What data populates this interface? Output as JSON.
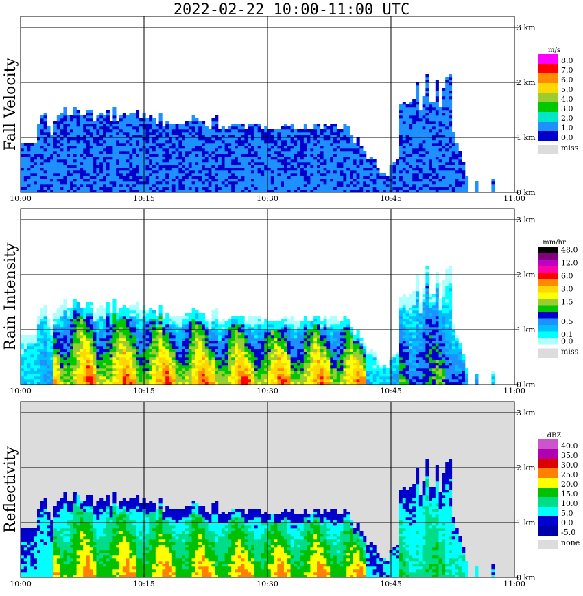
{
  "title": "2022-02-22  10:00-11:00 UTC",
  "x_tick_labels": [
    "10:00",
    "10:15",
    "10:30",
    "10:45",
    "11:00"
  ],
  "y_tick_labels": [
    "0 km",
    "1 km",
    "2 km",
    "3 km"
  ],
  "missing_color": "#dcdcdc",
  "chart_data": [
    {
      "type": "heatmap",
      "title": "Fall Velocity",
      "unit": "m/s",
      "xlim": [
        "10:00",
        "11:00"
      ],
      "ylim_km": [
        0,
        3.2
      ],
      "background": "#ffffff",
      "legend": [
        {
          "label": "8.0",
          "color": "#ff00ff"
        },
        {
          "label": "7.0",
          "color": "#ff0000"
        },
        {
          "label": "6.0",
          "color": "#ff8c00"
        },
        {
          "label": "5.0",
          "color": "#ffd700"
        },
        {
          "label": "4.0",
          "color": "#9acd32"
        },
        {
          "label": "3.0",
          "color": "#00c800"
        },
        {
          "label": "2.0",
          "color": "#00e6c8"
        },
        {
          "label": "1.0",
          "color": "#1e90ff"
        },
        {
          "label": "0.0",
          "color": "#0000cd"
        },
        {
          "label": "miss",
          "color": "#dcdcdc"
        }
      ]
    },
    {
      "type": "heatmap",
      "title": "Rain Intensity",
      "unit": "mm/hr",
      "xlim": [
        "10:00",
        "11:00"
      ],
      "ylim_km": [
        0,
        3.2
      ],
      "background": "#ffffff",
      "legend": [
        {
          "label": "48.0",
          "color": "#000000"
        },
        {
          "label": "",
          "color": "#800080"
        },
        {
          "label": "12.0",
          "color": "#c000c0"
        },
        {
          "label": "",
          "color": "#ff00aa"
        },
        {
          "label": "6.0",
          "color": "#ff0000"
        },
        {
          "label": "",
          "color": "#ff8c00"
        },
        {
          "label": "3.0",
          "color": "#ffd700"
        },
        {
          "label": "",
          "color": "#ffff00"
        },
        {
          "label": "1.5",
          "color": "#9acd32"
        },
        {
          "label": "",
          "color": "#00c800"
        },
        {
          "label": "",
          "color": "#0000cd"
        },
        {
          "label": "0.5",
          "color": "#1e90ff"
        },
        {
          "label": "",
          "color": "#00bfff"
        },
        {
          "label": "0.1",
          "color": "#00ffff"
        },
        {
          "label": "0.0",
          "color": "#b0ffff"
        },
        {
          "label": "miss",
          "color": "#dcdcdc"
        }
      ]
    },
    {
      "type": "heatmap",
      "title": "Reflectivity",
      "unit": "dBZ",
      "xlim": [
        "10:00",
        "11:00"
      ],
      "ylim_km": [
        0,
        3.2
      ],
      "background": "#dcdcdc",
      "legend": [
        {
          "label": "40.0",
          "color": "#cc55cc"
        },
        {
          "label": "35.0",
          "color": "#b000b0"
        },
        {
          "label": "30.0",
          "color": "#dd0000"
        },
        {
          "label": "25.0",
          "color": "#ff8000"
        },
        {
          "label": "20.0",
          "color": "#ffff00"
        },
        {
          "label": "15.0",
          "color": "#00c000"
        },
        {
          "label": "10.0",
          "color": "#00dd88"
        },
        {
          "label": "5.0",
          "color": "#00ffff"
        },
        {
          "label": "0.0",
          "color": "#0000cd"
        },
        {
          "label": "-5.0",
          "color": "#0000aa"
        },
        {
          "label": "none",
          "color": "#dcdcdc"
        }
      ]
    }
  ]
}
